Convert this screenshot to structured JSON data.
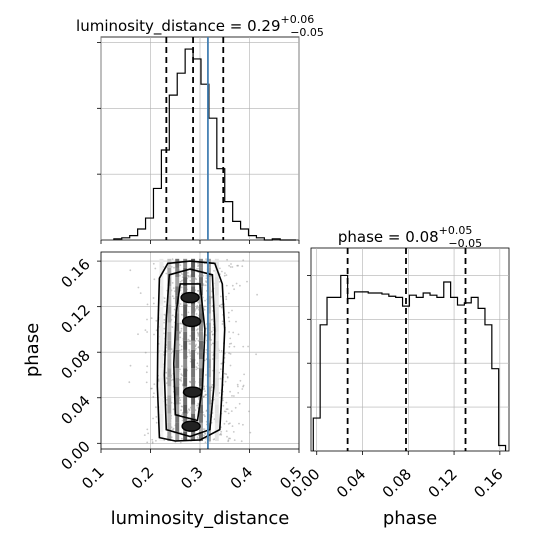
{
  "chart_data": [
    {
      "type": "histogram",
      "panel": "luminosity_distance marginal",
      "title": {
        "main": "luminosity_distance = 0.29",
        "plus": "+0.06",
        "minus": "−0.05"
      },
      "x_range": [
        0.1,
        0.5
      ],
      "bins": {
        "edges": [
          0.126,
          0.142,
          0.158,
          0.174,
          0.19,
          0.206,
          0.222,
          0.238,
          0.254,
          0.27,
          0.286,
          0.302,
          0.318,
          0.334,
          0.35,
          0.366,
          0.382,
          0.398,
          0.414,
          0.43,
          0.446,
          0.462,
          0.478,
          0.494
        ],
        "values": [
          1,
          2,
          4,
          10,
          20,
          47,
          82,
          132,
          152,
          174,
          165,
          142,
          111,
          65,
          35,
          17,
          10,
          4,
          2,
          0,
          1,
          0,
          0
        ]
      },
      "quantiles": [
        0.232,
        0.286,
        0.347
      ],
      "truth": 0.316,
      "grid": true
    },
    {
      "type": "histogram",
      "panel": "phase marginal",
      "title": {
        "main": "phase = 0.08",
        "plus": "+0.05",
        "minus": "−0.05"
      },
      "x_range": [
        -0.005,
        0.168
      ],
      "bins": {
        "edges": [
          -0.003,
          0.003,
          0.009,
          0.015,
          0.021,
          0.027,
          0.033,
          0.039,
          0.045,
          0.051,
          0.057,
          0.063,
          0.069,
          0.075,
          0.081,
          0.087,
          0.093,
          0.099,
          0.105,
          0.111,
          0.117,
          0.123,
          0.129,
          0.135,
          0.141,
          0.147,
          0.153,
          0.159,
          0.165
        ],
        "values": [
          30,
          115,
          140,
          140,
          160,
          139,
          145,
          145,
          144,
          144,
          143,
          141,
          140,
          132,
          142,
          140,
          144,
          142,
          140,
          154,
          140,
          133,
          135,
          140,
          130,
          115,
          75,
          5
        ]
      },
      "quantiles": [
        0.027,
        0.078,
        0.13
      ],
      "grid": true
    },
    {
      "type": "2d-density",
      "x": "luminosity_distance",
      "y": "phase",
      "xlabel": "luminosity_distance",
      "ylabel": "phase",
      "xlim": [
        0.1,
        0.5
      ],
      "ylim": [
        -0.005,
        0.168
      ],
      "x_ticks": [
        "0.1",
        "0.2",
        "0.3",
        "0.4",
        "0.5"
      ],
      "y_ticks": [
        "0.00",
        "0.04",
        "0.08",
        "0.12",
        "0.16"
      ],
      "truth_x": 0.316,
      "grid": true
    },
    {
      "type": "axis",
      "panel": "phase marginal x-axis",
      "xlabel": "phase",
      "x_ticks": [
        "0.00",
        "0.04",
        "0.08",
        "0.12",
        "0.16"
      ]
    }
  ],
  "colors": {
    "truth": "#4682b4",
    "step": "#000000",
    "grid": "#b0b0b0"
  }
}
